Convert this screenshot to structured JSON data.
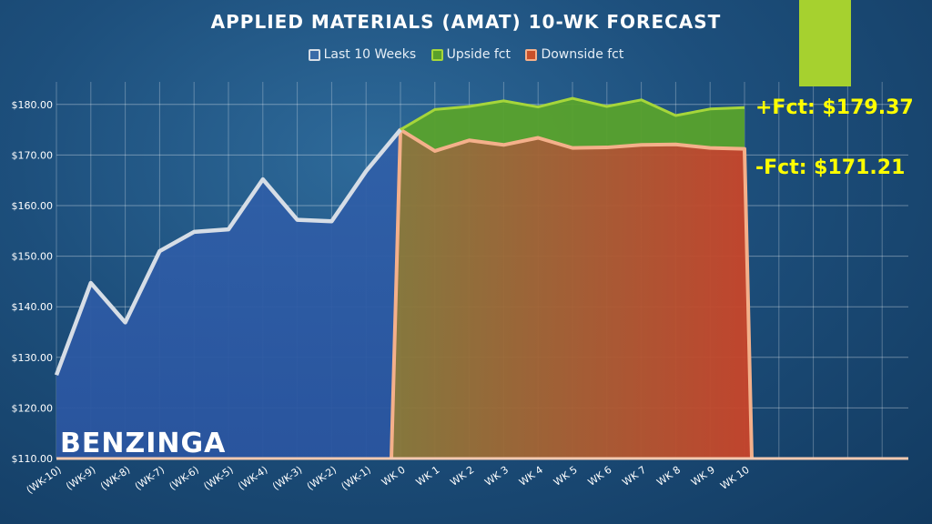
{
  "brand": "BENZINGA",
  "accent_color": "#a6d12f",
  "labels": {
    "upside_fct": "+Fct: $179.37",
    "downside_fct": "-Fct: $171.21"
  },
  "chart_data": {
    "type": "area",
    "title": "APPLIED MATERIALS (AMAT) 10-WK FORECAST",
    "xlabel": "",
    "ylabel": "",
    "ylim": [
      110,
      182
    ],
    "y_ticks": [
      "$110.00",
      "$120.00",
      "$130.00",
      "$140.00",
      "$150.00",
      "$160.00",
      "$170.00",
      "$180.00"
    ],
    "categories": [
      "(WK-10)",
      "(WK-9)",
      "(WK-8)",
      "(WK-7)",
      "(WK-6)",
      "(WK-5)",
      "(WK-4)",
      "(WK-3)",
      "(WK-2)",
      "(WK-1)",
      "WK 0",
      "WK 1",
      "WK 2",
      "WK 3",
      "WK 4",
      "WK 5",
      "WK 6",
      "WK 7",
      "WK 8",
      "WK 9",
      "WK 10"
    ],
    "grid": true,
    "legend_position": "top",
    "series": [
      {
        "name": "Last 10 Weeks",
        "color": "#d6dde6",
        "fill": "#2d5aa0",
        "values": [
          126.5,
          144.7,
          136.9,
          151.0,
          154.8,
          155.3,
          165.2,
          157.2,
          156.9,
          166.8,
          175.0,
          null,
          null,
          null,
          null,
          null,
          null,
          null,
          null,
          null,
          null
        ]
      },
      {
        "name": "Upside fct",
        "color": "#a6d63a",
        "fill": "#5aa02a",
        "values": [
          null,
          null,
          null,
          null,
          null,
          null,
          null,
          null,
          null,
          null,
          175.0,
          179.0,
          179.6,
          180.7,
          179.5,
          181.2,
          179.6,
          180.9,
          177.8,
          179.1,
          179.37
        ]
      },
      {
        "name": "Downside fct",
        "color": "#f4b08a",
        "fill": "#c8502a",
        "values": [
          null,
          null,
          null,
          null,
          null,
          null,
          null,
          null,
          null,
          null,
          175.0,
          170.8,
          172.9,
          172.0,
          173.4,
          171.4,
          171.5,
          172.0,
          172.1,
          171.4,
          171.21
        ]
      }
    ]
  }
}
